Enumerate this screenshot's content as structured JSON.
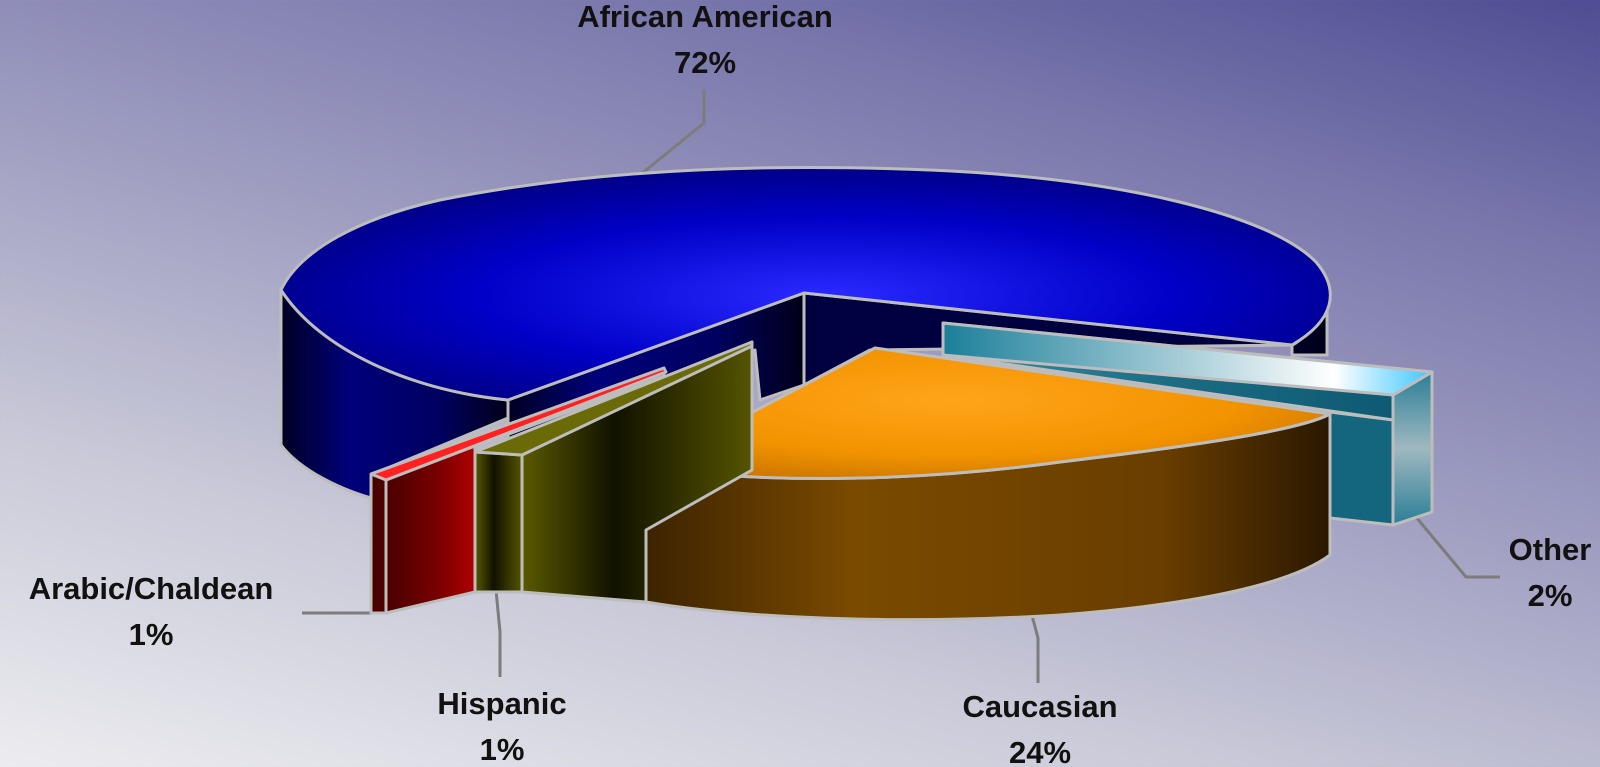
{
  "chart_data": {
    "type": "pie",
    "style": "3d-exploded",
    "categories": [
      "African American",
      "Other",
      "Caucasian",
      "Hispanic",
      "Arabic/Chaldean"
    ],
    "values": [
      72,
      2,
      24,
      1,
      1
    ],
    "value_labels": [
      "72%",
      "2%",
      "24%",
      "1%",
      "1%"
    ],
    "colors": [
      "#0a0ad8",
      "#35a6c4",
      "#f59a0c",
      "#77770e",
      "#c31010"
    ],
    "title": "",
    "legend": "none"
  }
}
